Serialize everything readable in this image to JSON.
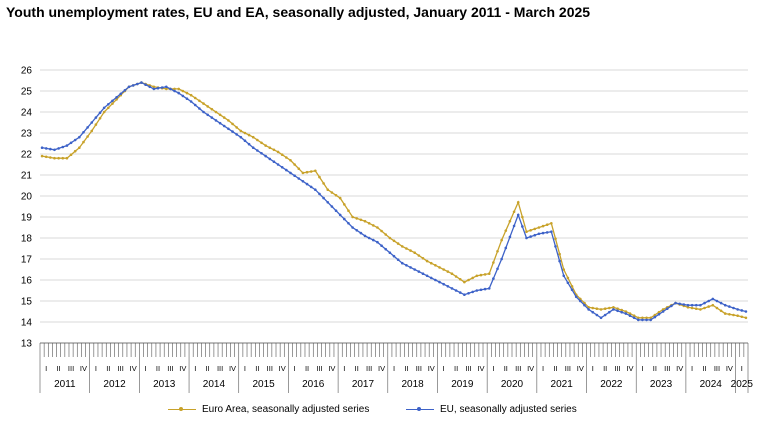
{
  "chart_data": {
    "type": "line",
    "title": "Youth unemployment rates, EU and EA, seasonally adjusted, January 2011 - March 2025",
    "xlabel": "",
    "ylabel": "",
    "ylim": [
      13,
      26
    ],
    "yticks": [
      13,
      14,
      15,
      16,
      17,
      18,
      19,
      20,
      21,
      22,
      23,
      24,
      25,
      26
    ],
    "x_start": "2011-01",
    "x_end": "2025-03",
    "years": [
      "2011",
      "2012",
      "2013",
      "2014",
      "2015",
      "2016",
      "2017",
      "2018",
      "2019",
      "2020",
      "2021",
      "2022",
      "2023",
      "2024",
      "2025"
    ],
    "quarters": [
      "I",
      "II",
      "III",
      "IV"
    ],
    "grid": true,
    "legend_position": "bottom",
    "series": [
      {
        "name": "Euro Area, seasonally adjusted series",
        "color": "#c8a22a",
        "anchors": [
          [
            "2011-01",
            21.9
          ],
          [
            "2011-04",
            21.8
          ],
          [
            "2011-07",
            21.8
          ],
          [
            "2011-10",
            22.3
          ],
          [
            "2012-01",
            23.1
          ],
          [
            "2012-04",
            24.0
          ],
          [
            "2012-07",
            24.6
          ],
          [
            "2012-10",
            25.2
          ],
          [
            "2013-01",
            25.4
          ],
          [
            "2013-04",
            25.2
          ],
          [
            "2013-07",
            25.1
          ],
          [
            "2013-10",
            25.1
          ],
          [
            "2014-01",
            24.8
          ],
          [
            "2014-04",
            24.4
          ],
          [
            "2014-07",
            24.0
          ],
          [
            "2014-10",
            23.6
          ],
          [
            "2015-01",
            23.1
          ],
          [
            "2015-04",
            22.8
          ],
          [
            "2015-07",
            22.4
          ],
          [
            "2015-10",
            22.1
          ],
          [
            "2016-01",
            21.7
          ],
          [
            "2016-04",
            21.1
          ],
          [
            "2016-07",
            21.2
          ],
          [
            "2016-10",
            20.3
          ],
          [
            "2017-01",
            19.9
          ],
          [
            "2017-04",
            19.0
          ],
          [
            "2017-07",
            18.8
          ],
          [
            "2017-10",
            18.5
          ],
          [
            "2018-01",
            18.0
          ],
          [
            "2018-04",
            17.6
          ],
          [
            "2018-07",
            17.3
          ],
          [
            "2018-10",
            16.9
          ],
          [
            "2019-01",
            16.6
          ],
          [
            "2019-04",
            16.3
          ],
          [
            "2019-07",
            15.9
          ],
          [
            "2019-10",
            16.2
          ],
          [
            "2020-01",
            16.3
          ],
          [
            "2020-04",
            17.9
          ],
          [
            "2020-08",
            19.7
          ],
          [
            "2020-10",
            18.3
          ],
          [
            "2021-01",
            18.5
          ],
          [
            "2021-04",
            18.7
          ],
          [
            "2021-07",
            16.5
          ],
          [
            "2021-10",
            15.3
          ],
          [
            "2022-01",
            14.7
          ],
          [
            "2022-04",
            14.6
          ],
          [
            "2022-07",
            14.7
          ],
          [
            "2022-10",
            14.5
          ],
          [
            "2023-01",
            14.2
          ],
          [
            "2023-04",
            14.2
          ],
          [
            "2023-07",
            14.6
          ],
          [
            "2023-10",
            14.9
          ],
          [
            "2024-01",
            14.7
          ],
          [
            "2024-04",
            14.6
          ],
          [
            "2024-07",
            14.8
          ],
          [
            "2024-10",
            14.4
          ],
          [
            "2025-01",
            14.3
          ],
          [
            "2025-03",
            14.2
          ]
        ]
      },
      {
        "name": "EU, seasonally adjusted series",
        "color": "#3d62c8",
        "anchors": [
          [
            "2011-01",
            22.3
          ],
          [
            "2011-04",
            22.2
          ],
          [
            "2011-07",
            22.4
          ],
          [
            "2011-10",
            22.8
          ],
          [
            "2012-01",
            23.5
          ],
          [
            "2012-04",
            24.2
          ],
          [
            "2012-07",
            24.7
          ],
          [
            "2012-10",
            25.2
          ],
          [
            "2013-01",
            25.4
          ],
          [
            "2013-04",
            25.1
          ],
          [
            "2013-07",
            25.2
          ],
          [
            "2013-10",
            24.9
          ],
          [
            "2014-01",
            24.5
          ],
          [
            "2014-04",
            24.0
          ],
          [
            "2014-07",
            23.6
          ],
          [
            "2014-10",
            23.2
          ],
          [
            "2015-01",
            22.8
          ],
          [
            "2015-04",
            22.3
          ],
          [
            "2015-07",
            21.9
          ],
          [
            "2015-10",
            21.5
          ],
          [
            "2016-01",
            21.1
          ],
          [
            "2016-04",
            20.7
          ],
          [
            "2016-07",
            20.3
          ],
          [
            "2016-10",
            19.7
          ],
          [
            "2017-01",
            19.1
          ],
          [
            "2017-04",
            18.5
          ],
          [
            "2017-07",
            18.1
          ],
          [
            "2017-10",
            17.8
          ],
          [
            "2018-01",
            17.3
          ],
          [
            "2018-04",
            16.8
          ],
          [
            "2018-07",
            16.5
          ],
          [
            "2018-10",
            16.2
          ],
          [
            "2019-01",
            15.9
          ],
          [
            "2019-04",
            15.6
          ],
          [
            "2019-07",
            15.3
          ],
          [
            "2019-10",
            15.5
          ],
          [
            "2020-01",
            15.6
          ],
          [
            "2020-04",
            17.0
          ],
          [
            "2020-08",
            19.1
          ],
          [
            "2020-10",
            18.0
          ],
          [
            "2021-01",
            18.2
          ],
          [
            "2021-04",
            18.3
          ],
          [
            "2021-07",
            16.2
          ],
          [
            "2021-10",
            15.2
          ],
          [
            "2022-01",
            14.6
          ],
          [
            "2022-04",
            14.2
          ],
          [
            "2022-07",
            14.6
          ],
          [
            "2022-10",
            14.4
          ],
          [
            "2023-01",
            14.1
          ],
          [
            "2023-04",
            14.1
          ],
          [
            "2023-07",
            14.5
          ],
          [
            "2023-10",
            14.9
          ],
          [
            "2024-01",
            14.8
          ],
          [
            "2024-04",
            14.8
          ],
          [
            "2024-07",
            15.1
          ],
          [
            "2024-10",
            14.8
          ],
          [
            "2025-01",
            14.6
          ],
          [
            "2025-03",
            14.5
          ]
        ]
      }
    ]
  }
}
